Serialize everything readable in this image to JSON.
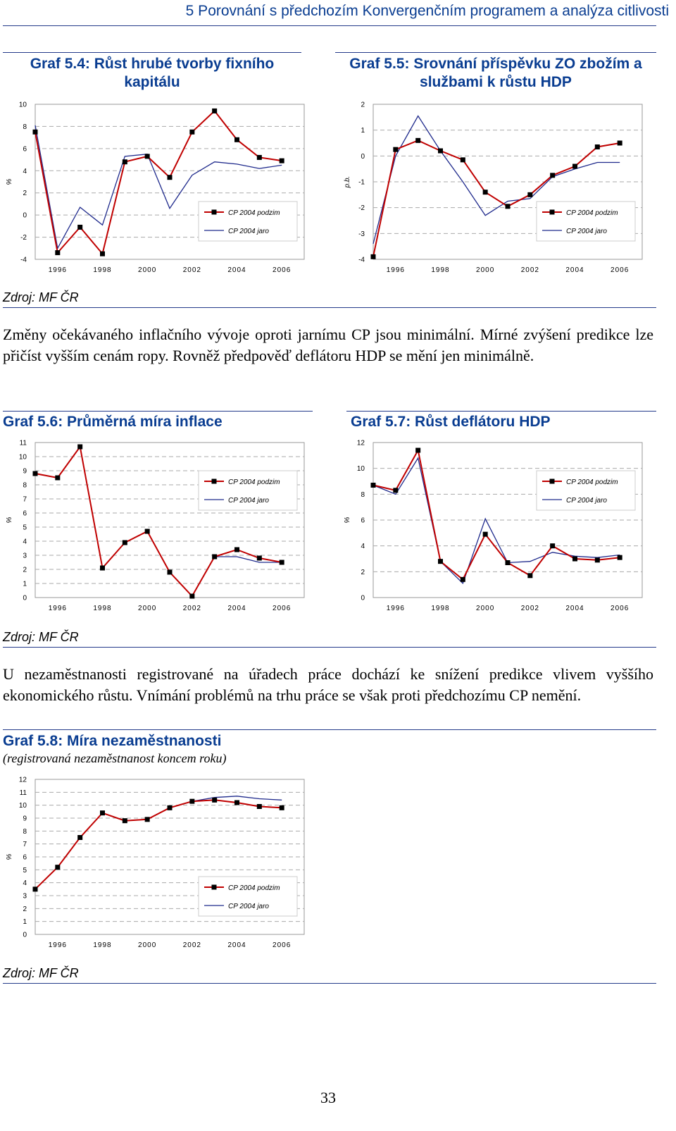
{
  "header": "5 Porovnání s předchozím Konvergenčním programem a analýza citlivosti",
  "graf54": {
    "title": "Graf 5.4: Růst hrubé tvorby fixního kapitálu",
    "source": "Zdroj: MF ČR"
  },
  "graf55": {
    "title": "Graf 5.5: Srovnání příspěvku ZO zbožím a službami k růstu HDP"
  },
  "paragraph1": "Změny očekávaného inflačního vývoje oproti jarnímu CP jsou minimální. Mírné zvýšení predikce lze přičíst vyšším cenám ropy. Rovněž předpověď deflátoru HDP se mění jen minimálně.",
  "graf56": {
    "title": "Graf 5.6: Průměrná míra inflace",
    "source": "Zdroj: MF ČR"
  },
  "graf57": {
    "title": "Graf 5.7: Růst deflátoru HDP"
  },
  "paragraph2": "U nezaměstnanosti registrované na úřadech práce dochází ke snížení predikce vlivem vyššího ekonomického růstu. Vnímání problémů na trhu práce se však proti předchozímu CP nemění.",
  "graf58": {
    "title": "Graf 5.8: Míra nezaměstnanosti",
    "subtitle": "(registrovaná nezaměstnanost koncem roku)",
    "source": "Zdroj: MF ČR"
  },
  "page_number": "33",
  "colors": {
    "podzim": "#c00000",
    "jaro": "#1f2a8c",
    "title": "#0a3d91"
  },
  "chart_data": [
    {
      "id": "g54",
      "type": "line",
      "ylabel": "%",
      "ylim": [
        -4,
        10
      ],
      "yticks": [
        -4,
        -2,
        0,
        2,
        4,
        6,
        8,
        10
      ],
      "xlim": [
        1995,
        2007
      ],
      "xticks": [
        "1996",
        "1998",
        "2000",
        "2002",
        "2004",
        "2006"
      ],
      "x": [
        1995,
        1996,
        1997,
        1998,
        1999,
        2000,
        2001,
        2002,
        2003,
        2004,
        2005,
        2006
      ],
      "legend": "bottom-right",
      "series": [
        {
          "name": "CP 2004 podzim",
          "values": [
            7.5,
            -3.4,
            -1.1,
            -3.5,
            4.8,
            5.3,
            3.4,
            7.5,
            9.4,
            6.8,
            5.2,
            4.9
          ]
        },
        {
          "name": "CP 2004 jaro",
          "values": [
            8.1,
            -3.0,
            0.7,
            -0.9,
            5.3,
            5.5,
            0.6,
            3.6,
            4.8,
            4.6,
            4.2,
            4.5
          ]
        }
      ]
    },
    {
      "id": "g55",
      "type": "line",
      "ylabel": "p.b.",
      "ylim": [
        -4,
        2
      ],
      "yticks": [
        -4,
        -3,
        -2,
        -1,
        0,
        1,
        2
      ],
      "xlim": [
        1995,
        2007
      ],
      "xticks": [
        "1996",
        "1998",
        "2000",
        "2002",
        "2004",
        "2006"
      ],
      "x": [
        1995,
        1996,
        1997,
        1998,
        1999,
        2000,
        2001,
        2002,
        2003,
        2004,
        2005,
        2006
      ],
      "legend": "bottom-right",
      "series": [
        {
          "name": "CP 2004 podzim",
          "values": [
            -3.9,
            0.25,
            0.6,
            0.2,
            -0.15,
            -1.4,
            -1.95,
            -1.5,
            -0.75,
            -0.4,
            0.35,
            0.5
          ]
        },
        {
          "name": "CP 2004 jaro",
          "values": [
            -3.4,
            0.0,
            1.55,
            0.2,
            -1.0,
            -2.3,
            -1.75,
            -1.65,
            -0.8,
            -0.5,
            -0.25,
            -0.25
          ]
        }
      ]
    },
    {
      "id": "g56",
      "type": "line",
      "ylabel": "%",
      "ylim": [
        0,
        11
      ],
      "yticks": [
        0,
        1,
        2,
        3,
        4,
        5,
        6,
        7,
        8,
        9,
        10,
        11
      ],
      "xlim": [
        1995,
        2007
      ],
      "xticks": [
        "1996",
        "1998",
        "2000",
        "2002",
        "2004",
        "2006"
      ],
      "x": [
        1995,
        1996,
        1997,
        1998,
        1999,
        2000,
        2001,
        2002,
        2003,
        2004,
        2005,
        2006
      ],
      "legend": "top-right",
      "series": [
        {
          "name": "CP 2004 podzim",
          "values": [
            8.8,
            8.5,
            10.7,
            2.1,
            3.9,
            4.7,
            1.8,
            0.1,
            2.9,
            3.4,
            2.8,
            2.5
          ]
        },
        {
          "name": "CP 2004 jaro",
          "values": [
            8.8,
            8.5,
            10.7,
            2.1,
            3.9,
            4.7,
            1.8,
            0.1,
            2.9,
            2.9,
            2.5,
            2.5
          ]
        }
      ]
    },
    {
      "id": "g57",
      "type": "line",
      "ylabel": "%",
      "ylim": [
        0,
        12
      ],
      "yticks": [
        0,
        2,
        4,
        6,
        8,
        10,
        12
      ],
      "xlim": [
        1995,
        2007
      ],
      "xticks": [
        "1996",
        "1998",
        "2000",
        "2002",
        "2004",
        "2006"
      ],
      "x": [
        1995,
        1996,
        1997,
        1998,
        1999,
        2000,
        2001,
        2002,
        2003,
        2004,
        2005,
        2006
      ],
      "legend": "top-right",
      "series": [
        {
          "name": "CP 2004 podzim",
          "values": [
            8.7,
            8.3,
            11.4,
            2.8,
            1.4,
            4.9,
            2.7,
            1.7,
            4.0,
            3.0,
            2.9,
            3.1
          ]
        },
        {
          "name": "CP 2004 jaro",
          "values": [
            8.7,
            8.0,
            10.8,
            2.8,
            1.1,
            6.1,
            2.7,
            2.8,
            3.5,
            3.2,
            3.1,
            3.3
          ]
        }
      ]
    },
    {
      "id": "g58",
      "type": "line",
      "ylabel": "%",
      "ylim": [
        0,
        12
      ],
      "yticks": [
        0,
        1,
        2,
        3,
        4,
        5,
        6,
        7,
        8,
        9,
        10,
        11,
        12
      ],
      "xlim": [
        1995,
        2007
      ],
      "xticks": [
        "1996",
        "1998",
        "2000",
        "2002",
        "2004",
        "2006"
      ],
      "x": [
        1995,
        1996,
        1997,
        1998,
        1999,
        2000,
        2001,
        2002,
        2003,
        2004,
        2005,
        2006
      ],
      "legend": "bottom-right",
      "series": [
        {
          "name": "CP 2004 podzim",
          "values": [
            3.5,
            5.2,
            7.5,
            9.4,
            8.8,
            8.9,
            9.8,
            10.3,
            10.4,
            10.2,
            9.9,
            9.8
          ]
        },
        {
          "name": "CP 2004 jaro",
          "values": [
            3.5,
            5.2,
            7.5,
            9.4,
            8.8,
            8.9,
            9.8,
            10.3,
            10.6,
            10.7,
            10.5,
            10.4
          ]
        }
      ]
    }
  ]
}
